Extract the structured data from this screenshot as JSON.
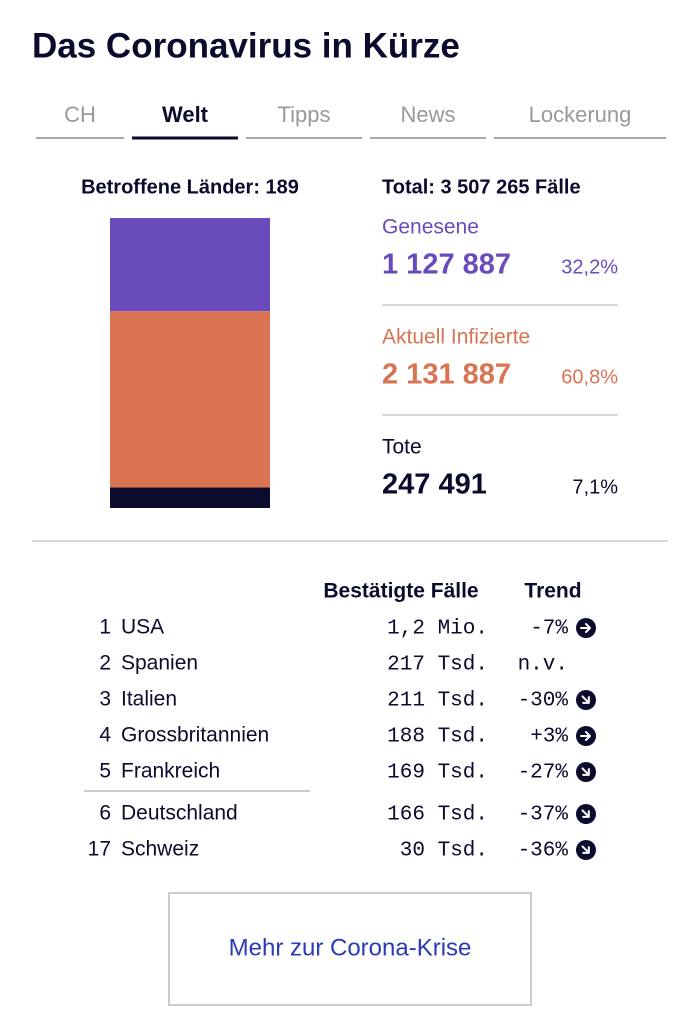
{
  "header": {
    "title": "Das Coronavirus in Kürze"
  },
  "tabs": [
    "CH",
    "Welt",
    "Tipps",
    "News",
    "Lockerung"
  ],
  "active_tab": "Welt",
  "summary": {
    "countries": "Betroffene Länder: 189",
    "total": "Total: 3 507 265 Fälle",
    "stats": [
      {
        "name": "Genesene",
        "value": 1127887,
        "label": "1 127 887",
        "percent": "32,2%",
        "color": "#6a4bbb"
      },
      {
        "name": "Aktuell Infizierte",
        "value": 2131887,
        "label": "2 131 887",
        "percent": "60,8%",
        "color": "#d97352"
      },
      {
        "name": "Tote",
        "value": 247491,
        "label": "247 491",
        "percent": "7,1%",
        "color": "#0b0b2e"
      }
    ]
  },
  "table": {
    "headers": [
      "Bestätigte Fälle",
      "Trend"
    ],
    "rows": [
      [
        "1",
        "USA",
        "1,2 Mio.",
        "-7%"
      ],
      [
        "2",
        "Spanien",
        "217 Tsd.",
        "n.v."
      ],
      [
        "3",
        "Italien",
        "211 Tsd.",
        "-30%"
      ],
      [
        "4",
        "Grossbritannien",
        "188 Tsd.",
        "+3%"
      ],
      [
        "5",
        "Frankreich",
        "169 Tsd.",
        "-27%"
      ],
      [
        "6",
        "Deutschland",
        "166 Tsd.",
        "-37%"
      ],
      [
        "17",
        "Schweiz",
        "30 Tsd.",
        "-36%"
      ]
    ]
  },
  "button": "Mehr zur Corona-Krise"
}
